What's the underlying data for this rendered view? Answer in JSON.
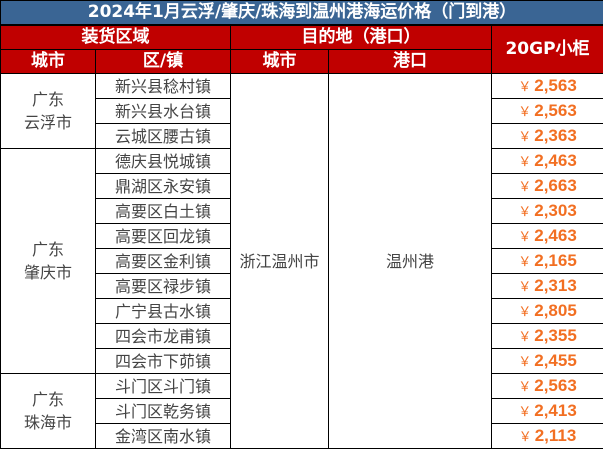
{
  "title": "2024年1月云浮/肇庆/珠海到温州港海运价格（门到港）",
  "headers": {
    "loading_area": "装货区域",
    "destination": "目的地（港口）",
    "price_20gp": "20GP小柜",
    "city": "城市",
    "district_town": "区/镇",
    "dest_city": "城市",
    "port": "港口"
  },
  "destination": {
    "city": "浙江温州市",
    "port": "温州港"
  },
  "currency_symbol": "￥",
  "colors": {
    "title_bg": "#3a6594",
    "header_bg": "#c00000",
    "price_text": "#f26f22"
  },
  "groups": [
    {
      "province": "广东",
      "city": "云浮市",
      "rows": [
        {
          "town": "新兴县稔村镇",
          "price": "2,563"
        },
        {
          "town": "新兴县水台镇",
          "price": "2,563"
        },
        {
          "town": "云城区腰古镇",
          "price": "2,363"
        }
      ]
    },
    {
      "province": "广东",
      "city": "肇庆市",
      "rows": [
        {
          "town": "德庆县悦城镇",
          "price": "2,463"
        },
        {
          "town": "鼎湖区永安镇",
          "price": "2,663"
        },
        {
          "town": "高要区白土镇",
          "price": "2,303"
        },
        {
          "town": "高要区回龙镇",
          "price": "2,463"
        },
        {
          "town": "高要区金利镇",
          "price": "2,165"
        },
        {
          "town": "高要区禄步镇",
          "price": "2,313"
        },
        {
          "town": "广宁县古水镇",
          "price": "2,805"
        },
        {
          "town": "四会市龙甫镇",
          "price": "2,355"
        },
        {
          "town": "四会市下茆镇",
          "price": "2,455"
        }
      ]
    },
    {
      "province": "广东",
      "city": "珠海市",
      "rows": [
        {
          "town": "斗门区斗门镇",
          "price": "2,563"
        },
        {
          "town": "斗门区乾务镇",
          "price": "2,413"
        },
        {
          "town": "金湾区南水镇",
          "price": "2,113"
        }
      ]
    }
  ]
}
